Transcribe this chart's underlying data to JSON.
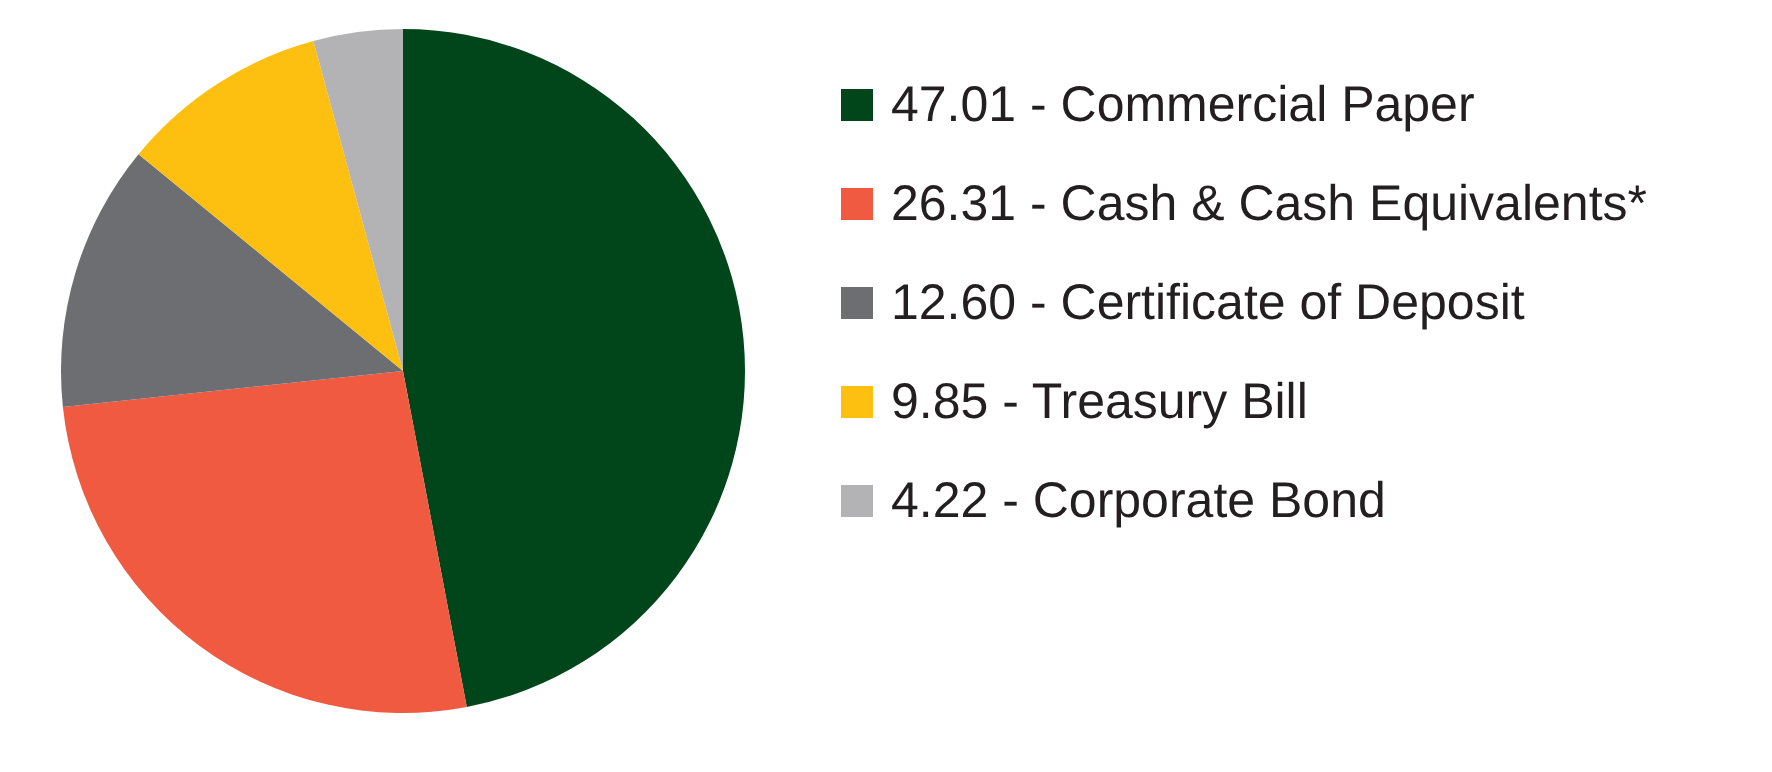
{
  "chart_data": {
    "type": "pie",
    "categories": [
      "Commercial Paper",
      "Cash & Cash Equivalents*",
      "Certificate of Deposit",
      "Treasury Bill",
      "Corporate Bond"
    ],
    "values": [
      47.01,
      26.31,
      12.6,
      9.85,
      4.22
    ],
    "value_labels": [
      "47.01",
      "26.31",
      "12.60",
      "9.85",
      "4.22"
    ],
    "colors": [
      "#00461a",
      "#f05a40",
      "#6d6e71",
      "#fdc010",
      "#b3b3b5"
    ],
    "legend": "right"
  }
}
